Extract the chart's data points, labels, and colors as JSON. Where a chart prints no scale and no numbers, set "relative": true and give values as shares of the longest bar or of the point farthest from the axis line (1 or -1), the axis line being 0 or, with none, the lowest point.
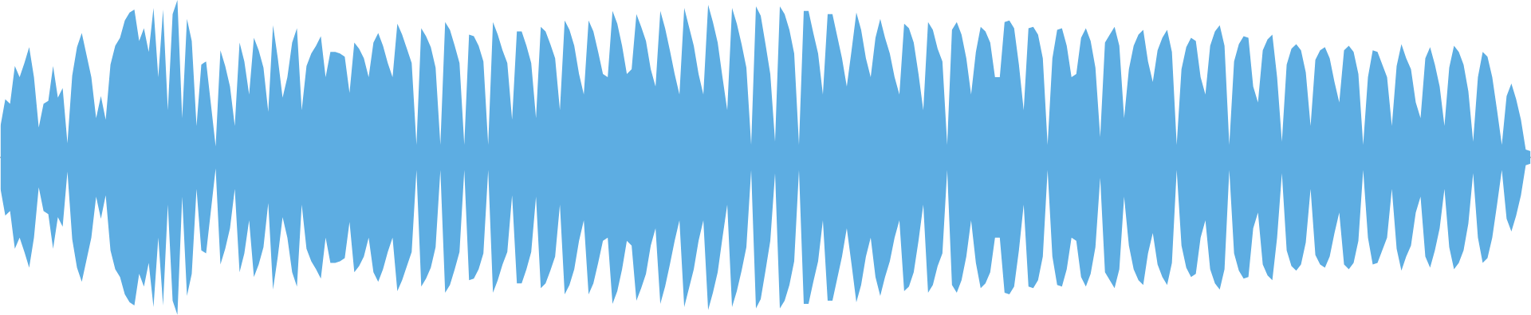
{
  "chart_data": {
    "type": "area",
    "relative": true,
    "categories": [
      null,
      null,
      null,
      null,
      null,
      null,
      null,
      null,
      null,
      null,
      null,
      null,
      null,
      null,
      null,
      null,
      null,
      null,
      null,
      null,
      null,
      null,
      null,
      null,
      null,
      null,
      null,
      null,
      null,
      null,
      null,
      null,
      null,
      null,
      null,
      null,
      null,
      null,
      null,
      null,
      null,
      null,
      null,
      null,
      null,
      null,
      null,
      null,
      null,
      null,
      null,
      null,
      null,
      null,
      null,
      null,
      null,
      null,
      null,
      null,
      null,
      null,
      null,
      null,
      null,
      null,
      null,
      null,
      null,
      null,
      null,
      null,
      null,
      null,
      null,
      null,
      null,
      null,
      null,
      null,
      null,
      null,
      null,
      null,
      null,
      null,
      null,
      null,
      null,
      null,
      null,
      null,
      null,
      null,
      null,
      null,
      null,
      null,
      null,
      null,
      null,
      null,
      null,
      null,
      null,
      null,
      null,
      null,
      null,
      null,
      null,
      null,
      null,
      null,
      null,
      null,
      null,
      null,
      null,
      null,
      null,
      null,
      null,
      null,
      null,
      null,
      null,
      null,
      null,
      null,
      null,
      null,
      null,
      null,
      null,
      null,
      null,
      null,
      null,
      null,
      null,
      null,
      null,
      null,
      null,
      null,
      null,
      null,
      null,
      null,
      null,
      null,
      null,
      null,
      null,
      null,
      null,
      null,
      null,
      null,
      null,
      null,
      null,
      null,
      null,
      null,
      null,
      null,
      null,
      null,
      null,
      null,
      null,
      null,
      null,
      null,
      null,
      null,
      null,
      null,
      null,
      null,
      null,
      null,
      null,
      null,
      null,
      null,
      null,
      null,
      null,
      null,
      null,
      null,
      null,
      null,
      null,
      null,
      null,
      null,
      null,
      null,
      null,
      null,
      null,
      null,
      null,
      null,
      null,
      null,
      null,
      null,
      null,
      null,
      null,
      null,
      null,
      null,
      null,
      null,
      null,
      null,
      null,
      null,
      null,
      null,
      null,
      null,
      null,
      null,
      null,
      null,
      null,
      null,
      null,
      null,
      null,
      null,
      null,
      null,
      null,
      null,
      null,
      null,
      null,
      null,
      null,
      null,
      null,
      null,
      null,
      null,
      null,
      null,
      null,
      null,
      null,
      null,
      null,
      null,
      null,
      null,
      null,
      null,
      null,
      null,
      null,
      null,
      null,
      null,
      null,
      null,
      null,
      null,
      null,
      null,
      null,
      null,
      null,
      null,
      null,
      null,
      null,
      null,
      null,
      null,
      null,
      null,
      null,
      null,
      null,
      null,
      null,
      null,
      null,
      null,
      null,
      null,
      null,
      null,
      null,
      null,
      null,
      null,
      null,
      null,
      null,
      null,
      null,
      null,
      null,
      null,
      null,
      null,
      null,
      null,
      null,
      null,
      null,
      null,
      null
    ],
    "series": [
      {
        "color": "#5dade2",
        "values": [
          0.2,
          0.37,
          0.34,
          0.58,
          0.51,
          0.6,
          0.7,
          0.51,
          0.19,
          0.34,
          0.36,
          0.58,
          0.38,
          0.44,
          0.09,
          0.52,
          0.7,
          0.79,
          0.65,
          0.51,
          0.25,
          0.39,
          0.24,
          0.59,
          0.71,
          0.76,
          0.87,
          0.92,
          0.94,
          0.74,
          0.82,
          0.67,
          0.95,
          0.51,
          0.94,
          0.3,
          0.91,
          1.0,
          0.25,
          0.88,
          0.74,
          0.2,
          0.59,
          0.61,
          0.34,
          0.07,
          0.68,
          0.58,
          0.45,
          0.2,
          0.73,
          0.61,
          0.4,
          0.76,
          0.68,
          0.57,
          0.29,
          0.84,
          0.63,
          0.38,
          0.51,
          0.73,
          0.82,
          0.3,
          0.58,
          0.66,
          0.71,
          0.77,
          0.51,
          0.67,
          0.67,
          0.66,
          0.64,
          0.41,
          0.73,
          0.69,
          0.63,
          0.51,
          0.73,
          0.79,
          0.71,
          0.6,
          0.51,
          0.85,
          0.78,
          0.69,
          0.6,
          0.08,
          0.82,
          0.77,
          0.7,
          0.57,
          0.08,
          0.86,
          0.81,
          0.71,
          0.6,
          0.08,
          0.78,
          0.77,
          0.71,
          0.61,
          0.08,
          0.86,
          0.78,
          0.68,
          0.6,
          0.24,
          0.8,
          0.8,
          0.71,
          0.6,
          0.25,
          0.83,
          0.8,
          0.72,
          0.63,
          0.3,
          0.87,
          0.81,
          0.71,
          0.53,
          0.4,
          0.87,
          0.8,
          0.67,
          0.53,
          0.51,
          0.93,
          0.85,
          0.71,
          0.53,
          0.56,
          0.91,
          0.83,
          0.74,
          0.56,
          0.45,
          0.93,
          0.82,
          0.68,
          0.53,
          0.4,
          0.95,
          0.83,
          0.71,
          0.53,
          0.4,
          0.97,
          0.86,
          0.73,
          0.51,
          0.3,
          0.95,
          0.85,
          0.72,
          0.57,
          0.08,
          0.96,
          0.9,
          0.72,
          0.53,
          0.1,
          0.96,
          0.91,
          0.81,
          0.66,
          0.08,
          0.93,
          0.93,
          0.79,
          0.66,
          0.4,
          0.91,
          0.91,
          0.77,
          0.63,
          0.45,
          0.68,
          0.92,
          0.81,
          0.63,
          0.51,
          0.76,
          0.88,
          0.76,
          0.66,
          0.51,
          0.4,
          0.85,
          0.82,
          0.73,
          0.53,
          0.3,
          0.86,
          0.81,
          0.69,
          0.61,
          0.08,
          0.81,
          0.86,
          0.78,
          0.63,
          0.4,
          0.67,
          0.83,
          0.8,
          0.73,
          0.51,
          0.51,
          0.86,
          0.87,
          0.82,
          0.59,
          0.3,
          0.82,
          0.83,
          0.78,
          0.63,
          0.08,
          0.63,
          0.81,
          0.82,
          0.71,
          0.51,
          0.53,
          0.76,
          0.82,
          0.74,
          0.57,
          0.13,
          0.73,
          0.78,
          0.83,
          0.71,
          0.25,
          0.56,
          0.71,
          0.78,
          0.81,
          0.61,
          0.48,
          0.68,
          0.76,
          0.81,
          0.67,
          0.08,
          0.56,
          0.7,
          0.76,
          0.74,
          0.51,
          0.4,
          0.71,
          0.8,
          0.84,
          0.71,
          0.08,
          0.61,
          0.72,
          0.77,
          0.76,
          0.45,
          0.35,
          0.68,
          0.75,
          0.78,
          0.51,
          0.1,
          0.59,
          0.69,
          0.72,
          0.68,
          0.54,
          0.2,
          0.62,
          0.68,
          0.7,
          0.63,
          0.48,
          0.35,
          0.68,
          0.71,
          0.67,
          0.53,
          0.08,
          0.51,
          0.68,
          0.67,
          0.59,
          0.51,
          0.2,
          0.58,
          0.72,
          0.63,
          0.56,
          0.35,
          0.25,
          0.63,
          0.7,
          0.59,
          0.45,
          0.2,
          0.57,
          0.71,
          0.67,
          0.59,
          0.42,
          0.1,
          0.51,
          0.67,
          0.64,
          0.51,
          0.3,
          0.08,
          0.39,
          0.47,
          0.37,
          0.24,
          0.05,
          0.04
        ]
      },
      {
        "color": "#5dade2",
        "values": [
          -0.2,
          -0.37,
          -0.34,
          -0.58,
          -0.51,
          -0.6,
          -0.7,
          -0.51,
          -0.19,
          -0.34,
          -0.36,
          -0.58,
          -0.38,
          -0.44,
          -0.09,
          -0.52,
          -0.7,
          -0.79,
          -0.65,
          -0.51,
          -0.25,
          -0.39,
          -0.24,
          -0.59,
          -0.71,
          -0.76,
          -0.87,
          -0.92,
          -0.94,
          -0.74,
          -0.82,
          -0.67,
          -0.95,
          -0.51,
          -0.94,
          -0.3,
          -0.91,
          -1.0,
          -0.25,
          -0.88,
          -0.74,
          -0.2,
          -0.59,
          -0.61,
          -0.34,
          -0.07,
          -0.68,
          -0.58,
          -0.45,
          -0.2,
          -0.73,
          -0.61,
          -0.4,
          -0.76,
          -0.68,
          -0.57,
          -0.29,
          -0.84,
          -0.63,
          -0.38,
          -0.51,
          -0.73,
          -0.82,
          -0.3,
          -0.58,
          -0.66,
          -0.71,
          -0.77,
          -0.51,
          -0.67,
          -0.67,
          -0.66,
          -0.64,
          -0.41,
          -0.73,
          -0.69,
          -0.63,
          -0.51,
          -0.73,
          -0.79,
          -0.71,
          -0.6,
          -0.51,
          -0.85,
          -0.78,
          -0.69,
          -0.6,
          -0.08,
          -0.82,
          -0.77,
          -0.7,
          -0.57,
          -0.08,
          -0.86,
          -0.81,
          -0.71,
          -0.6,
          -0.08,
          -0.78,
          -0.77,
          -0.71,
          -0.61,
          -0.08,
          -0.86,
          -0.78,
          -0.68,
          -0.6,
          -0.24,
          -0.8,
          -0.8,
          -0.71,
          -0.6,
          -0.25,
          -0.83,
          -0.8,
          -0.72,
          -0.63,
          -0.3,
          -0.87,
          -0.81,
          -0.71,
          -0.53,
          -0.4,
          -0.87,
          -0.8,
          -0.67,
          -0.53,
          -0.51,
          -0.93,
          -0.85,
          -0.71,
          -0.53,
          -0.56,
          -0.91,
          -0.83,
          -0.74,
          -0.56,
          -0.45,
          -0.93,
          -0.82,
          -0.68,
          -0.53,
          -0.4,
          -0.95,
          -0.83,
          -0.71,
          -0.53,
          -0.4,
          -0.97,
          -0.86,
          -0.73,
          -0.51,
          -0.3,
          -0.95,
          -0.85,
          -0.72,
          -0.57,
          -0.08,
          -0.96,
          -0.9,
          -0.72,
          -0.53,
          -0.1,
          -0.96,
          -0.91,
          -0.81,
          -0.66,
          -0.08,
          -0.93,
          -0.93,
          -0.79,
          -0.66,
          -0.4,
          -0.91,
          -0.91,
          -0.77,
          -0.63,
          -0.45,
          -0.68,
          -0.92,
          -0.81,
          -0.63,
          -0.51,
          -0.76,
          -0.88,
          -0.76,
          -0.66,
          -0.51,
          -0.4,
          -0.85,
          -0.82,
          -0.73,
          -0.53,
          -0.3,
          -0.86,
          -0.81,
          -0.69,
          -0.61,
          -0.08,
          -0.81,
          -0.86,
          -0.78,
          -0.63,
          -0.4,
          -0.67,
          -0.83,
          -0.8,
          -0.73,
          -0.51,
          -0.51,
          -0.86,
          -0.87,
          -0.82,
          -0.59,
          -0.3,
          -0.82,
          -0.83,
          -0.78,
          -0.63,
          -0.08,
          -0.63,
          -0.81,
          -0.82,
          -0.71,
          -0.51,
          -0.53,
          -0.76,
          -0.82,
          -0.74,
          -0.57,
          -0.13,
          -0.73,
          -0.78,
          -0.83,
          -0.71,
          -0.25,
          -0.56,
          -0.71,
          -0.78,
          -0.81,
          -0.61,
          -0.48,
          -0.68,
          -0.76,
          -0.81,
          -0.67,
          -0.08,
          -0.56,
          -0.7,
          -0.76,
          -0.74,
          -0.51,
          -0.4,
          -0.71,
          -0.8,
          -0.84,
          -0.71,
          -0.08,
          -0.61,
          -0.72,
          -0.77,
          -0.76,
          -0.45,
          -0.35,
          -0.68,
          -0.75,
          -0.78,
          -0.51,
          -0.1,
          -0.59,
          -0.69,
          -0.72,
          -0.68,
          -0.54,
          -0.2,
          -0.62,
          -0.68,
          -0.7,
          -0.63,
          -0.48,
          -0.35,
          -0.68,
          -0.71,
          -0.67,
          -0.53,
          -0.08,
          -0.51,
          -0.68,
          -0.67,
          -0.59,
          -0.51,
          -0.2,
          -0.58,
          -0.72,
          -0.63,
          -0.56,
          -0.35,
          -0.25,
          -0.63,
          -0.7,
          -0.59,
          -0.45,
          -0.2,
          -0.57,
          -0.71,
          -0.67,
          -0.59,
          -0.42,
          -0.1,
          -0.51,
          -0.67,
          -0.64,
          -0.51,
          -0.3,
          -0.08,
          -0.39,
          -0.47,
          -0.37,
          -0.24,
          -0.05,
          -0.04
        ]
      }
    ]
  }
}
